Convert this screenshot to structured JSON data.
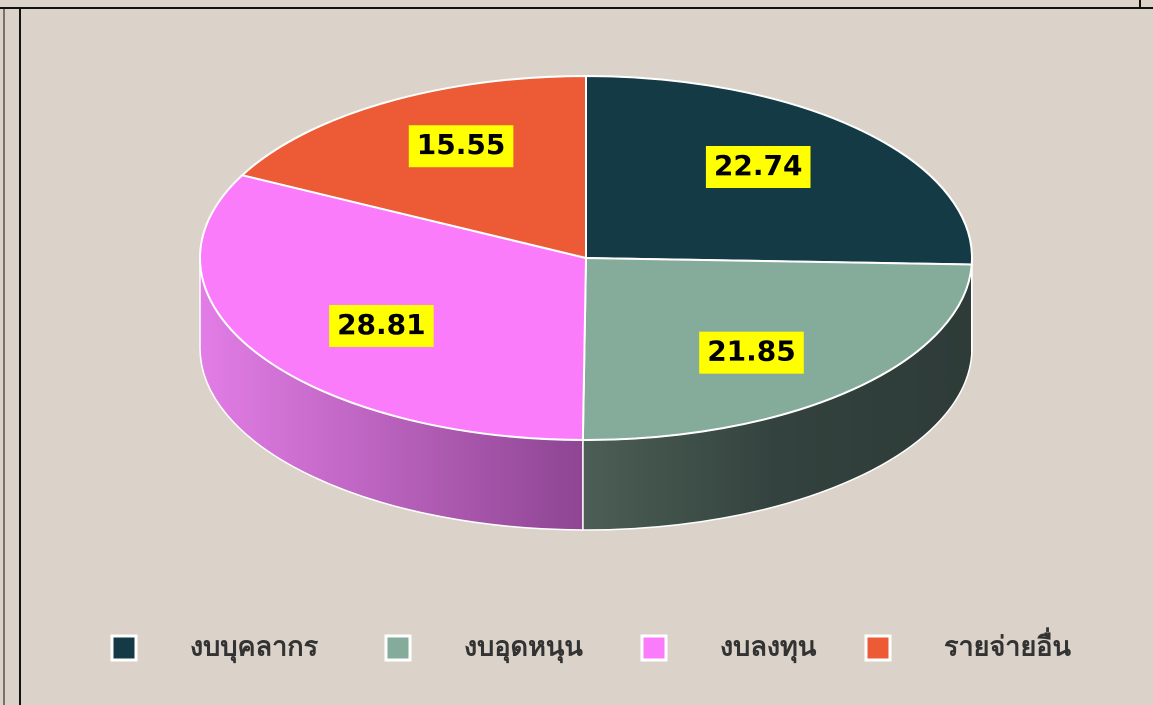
{
  "chart_data": {
    "type": "pie3d",
    "categories": [
      "งบบุคลากร",
      "งบอุดหนุน",
      "งบลงทุน",
      "รายจ่ายอื่น"
    ],
    "values": [
      22.74,
      21.85,
      28.81,
      15.55
    ],
    "colors": [
      "#143a45",
      "#85ab9b",
      "#fa7cfa",
      "#ec5b36"
    ],
    "legend": "bottom"
  }
}
